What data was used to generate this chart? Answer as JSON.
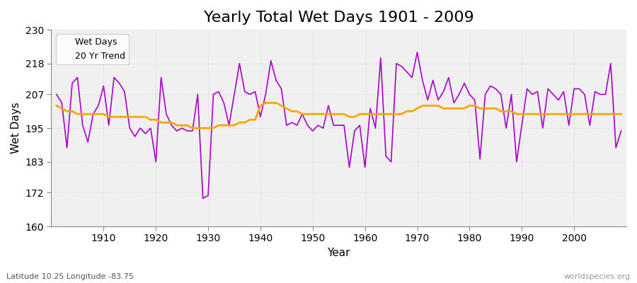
{
  "title": "Yearly Total Wet Days 1901 - 2009",
  "xlabel": "Year",
  "ylabel": "Wet Days",
  "subtitle": "Latitude 10.25 Longitude -83.75",
  "watermark": "worldspecies.org",
  "years": [
    1901,
    1902,
    1903,
    1904,
    1905,
    1906,
    1907,
    1908,
    1909,
    1910,
    1911,
    1912,
    1913,
    1914,
    1915,
    1916,
    1917,
    1918,
    1919,
    1920,
    1921,
    1922,
    1923,
    1924,
    1925,
    1926,
    1927,
    1928,
    1929,
    1930,
    1931,
    1932,
    1933,
    1934,
    1935,
    1936,
    1937,
    1938,
    1939,
    1940,
    1941,
    1942,
    1943,
    1944,
    1945,
    1946,
    1947,
    1948,
    1949,
    1950,
    1951,
    1952,
    1953,
    1954,
    1955,
    1956,
    1957,
    1958,
    1959,
    1960,
    1961,
    1962,
    1963,
    1964,
    1965,
    1966,
    1967,
    1968,
    1969,
    1970,
    1971,
    1972,
    1973,
    1974,
    1975,
    1976,
    1977,
    1978,
    1979,
    1980,
    1981,
    1982,
    1983,
    1984,
    1985,
    1986,
    1987,
    1988,
    1989,
    1990,
    1991,
    1992,
    1993,
    1994,
    1995,
    1996,
    1997,
    1998,
    1999,
    2000,
    2001,
    2002,
    2003,
    2004,
    2005,
    2006,
    2007,
    2008,
    2009
  ],
  "wet_days": [
    207,
    204,
    188,
    211,
    213,
    196,
    190,
    200,
    203,
    210,
    196,
    213,
    211,
    208,
    195,
    192,
    195,
    193,
    195,
    183,
    213,
    200,
    196,
    194,
    195,
    194,
    194,
    207,
    170,
    171,
    207,
    208,
    204,
    196,
    207,
    218,
    208,
    207,
    208,
    199,
    207,
    219,
    212,
    209,
    196,
    197,
    196,
    200,
    196,
    194,
    196,
    195,
    203,
    196,
    196,
    196,
    181,
    194,
    196,
    181,
    202,
    195,
    220,
    185,
    183,
    218,
    217,
    215,
    213,
    222,
    212,
    205,
    212,
    205,
    208,
    213,
    204,
    207,
    211,
    207,
    205,
    184,
    207,
    210,
    209,
    207,
    195,
    207,
    183,
    196,
    209,
    207,
    208,
    195,
    209,
    207,
    205,
    208,
    196,
    209,
    209,
    207,
    196,
    208,
    207,
    207,
    218,
    188,
    194
  ],
  "trend_years": [
    1901,
    1902,
    1903,
    1904,
    1905,
    1906,
    1907,
    1908,
    1909,
    1910,
    1911,
    1912,
    1913,
    1914,
    1915,
    1916,
    1917,
    1918,
    1919,
    1920,
    1921,
    1922,
    1923,
    1924,
    1925,
    1926,
    1927,
    1928,
    1929,
    1930,
    1931,
    1932,
    1933,
    1934,
    1935,
    1936,
    1937,
    1938,
    1939,
    1940,
    1941,
    1942,
    1943,
    1944,
    1945,
    1946,
    1947,
    1948,
    1949,
    1950,
    1951,
    1952,
    1953,
    1954,
    1955,
    1956,
    1957,
    1958,
    1959,
    1960,
    1961,
    1962,
    1963,
    1964,
    1965,
    1966,
    1967,
    1968,
    1969,
    1970,
    1971,
    1972,
    1973,
    1974,
    1975,
    1976,
    1977,
    1978,
    1979,
    1980,
    1981,
    1982,
    1983,
    1984,
    1985,
    1986,
    1987,
    1988,
    1989,
    1990,
    1991,
    1992,
    1993,
    1994,
    1995,
    1996,
    1997,
    1998,
    1999,
    2000,
    2001,
    2002,
    2003,
    2004,
    2005,
    2006,
    2007,
    2008,
    2009
  ],
  "trend_values": [
    203,
    202,
    201,
    201,
    200,
    200,
    200,
    200,
    200,
    200,
    199,
    199,
    199,
    199,
    199,
    199,
    199,
    199,
    198,
    198,
    197,
    197,
    197,
    196,
    196,
    196,
    195,
    195,
    195,
    195,
    195,
    196,
    196,
    196,
    196,
    197,
    197,
    198,
    198,
    203,
    204,
    204,
    204,
    203,
    202,
    201,
    201,
    200,
    200,
    200,
    200,
    200,
    200,
    200,
    200,
    200,
    199,
    199,
    200,
    200,
    200,
    200,
    200,
    200,
    200,
    200,
    200,
    201,
    201,
    202,
    203,
    203,
    203,
    203,
    202,
    202,
    202,
    202,
    202,
    203,
    203,
    202,
    202,
    202,
    202,
    201,
    201,
    201,
    200,
    200,
    200,
    200,
    200,
    200,
    200,
    200,
    200,
    200,
    200,
    200,
    200,
    200,
    200,
    200,
    200,
    200,
    200,
    200,
    200
  ],
  "wet_days_color": "#AA00CC",
  "trend_color": "#FFA500",
  "plot_bg_color": "#F0F0F0",
  "fig_bg_color": "#FFFFFF",
  "ylim": [
    160,
    230
  ],
  "yticks": [
    160,
    172,
    183,
    195,
    207,
    218,
    230
  ],
  "xlim": [
    1900,
    2010
  ],
  "xticks": [
    1910,
    1920,
    1930,
    1940,
    1950,
    1960,
    1970,
    1980,
    1990,
    2000
  ],
  "title_fontsize": 16,
  "label_fontsize": 11,
  "tick_fontsize": 10
}
